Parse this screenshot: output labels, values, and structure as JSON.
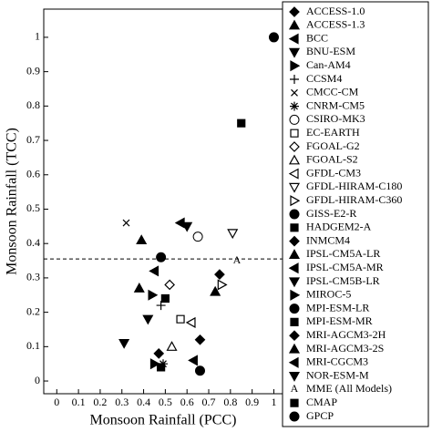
{
  "chart_data": {
    "type": "scatter",
    "x_label": "Monsoon Rainfall (PCC)",
    "y_label": "Monsoon Rainfall (TCC)",
    "xlim": [
      -0.06,
      1.04
    ],
    "ylim": [
      -0.037,
      1.082
    ],
    "xticks": [
      0,
      0.1,
      0.2,
      0.3,
      0.4,
      0.5,
      0.6,
      0.7,
      0.8,
      0.9,
      1
    ],
    "yticks": [
      0,
      0.1,
      0.2,
      0.3,
      0.4,
      0.5,
      0.6,
      0.7,
      0.8,
      0.9,
      1
    ],
    "reference_line": 0.355,
    "color": "#000000",
    "series": [
      {
        "name": "ACCESS-1.0",
        "marker": "diamond",
        "filled": true,
        "x": [
          0.47
        ],
        "values": [
          0.08
        ]
      },
      {
        "name": "ACCESS-1.3",
        "marker": "triangle-up",
        "filled": true,
        "x": [
          0.39
        ],
        "values": [
          0.41
        ]
      },
      {
        "name": "BCC",
        "marker": "triangle-left",
        "filled": true,
        "x": [
          0.45
        ],
        "values": [
          0.32
        ]
      },
      {
        "name": "BNU-ESM",
        "marker": "triangle-down",
        "filled": true,
        "x": [
          0.6
        ],
        "values": [
          0.45
        ]
      },
      {
        "name": "Can-AM4",
        "marker": "triangle-right",
        "filled": true,
        "x": [
          0.44
        ],
        "values": [
          0.25
        ]
      },
      {
        "name": "CCSM4",
        "marker": "plus",
        "filled": false,
        "x": [
          0.48
        ],
        "values": [
          0.22
        ]
      },
      {
        "name": "CMCC-CM",
        "marker": "cross",
        "filled": false,
        "x": [
          0.32
        ],
        "values": [
          0.46
        ]
      },
      {
        "name": "CNRM-CM5",
        "marker": "asterisk",
        "filled": false,
        "x": [
          0.49
        ],
        "values": [
          0.05
        ]
      },
      {
        "name": "CSIRO-MK3",
        "marker": "circle",
        "filled": false,
        "x": [
          0.65
        ],
        "values": [
          0.42
        ]
      },
      {
        "name": "EC-EARTH",
        "marker": "square",
        "filled": false,
        "x": [
          0.57
        ],
        "values": [
          0.18
        ]
      },
      {
        "name": "FGOAL-G2",
        "marker": "diamond",
        "filled": false,
        "x": [
          0.52
        ],
        "values": [
          0.28
        ]
      },
      {
        "name": "FGOAL-S2",
        "marker": "triangle-up",
        "filled": false,
        "x": [
          0.53
        ],
        "values": [
          0.1
        ]
      },
      {
        "name": "GFDL-CM3",
        "marker": "triangle-left",
        "filled": false,
        "x": [
          0.62
        ],
        "values": [
          0.17
        ]
      },
      {
        "name": "GFDL-HIRAM-C180",
        "marker": "triangle-down",
        "filled": false,
        "x": [
          0.81
        ],
        "values": [
          0.43
        ]
      },
      {
        "name": "GFDL-HIRAM-C360",
        "marker": "triangle-right",
        "filled": false,
        "x": [
          0.76
        ],
        "values": [
          0.28
        ]
      },
      {
        "name": "GISS-E2-R",
        "marker": "circle",
        "filled": true,
        "x": [
          0.48
        ],
        "values": [
          0.36
        ]
      },
      {
        "name": "HADGEM2-A",
        "marker": "square",
        "filled": true,
        "x": [
          0.85
        ],
        "values": [
          0.75
        ]
      },
      {
        "name": "INMCM4",
        "marker": "diamond",
        "filled": true,
        "x": [
          0.75
        ],
        "values": [
          0.31
        ]
      },
      {
        "name": "IPSL-CM5A-LR",
        "marker": "triangle-up",
        "filled": true,
        "x": [
          0.73
        ],
        "values": [
          0.26
        ]
      },
      {
        "name": "IPSL-CM5A-MR",
        "marker": "triangle-left",
        "filled": true,
        "x": [
          0.57
        ],
        "values": [
          0.46
        ]
      },
      {
        "name": "IPSL-CM5B-LR",
        "marker": "triangle-down",
        "filled": true,
        "x": [
          0.42
        ],
        "values": [
          0.18
        ]
      },
      {
        "name": "MIROC-5",
        "marker": "triangle-right",
        "filled": true,
        "x": [
          0.45
        ],
        "values": [
          0.05
        ]
      },
      {
        "name": "MPI-ESM-LR",
        "marker": "circle",
        "filled": true,
        "x": [
          0.66
        ],
        "values": [
          0.03
        ]
      },
      {
        "name": "MPI-ESM-MR",
        "marker": "square",
        "filled": true,
        "x": [
          0.5
        ],
        "values": [
          0.24
        ]
      },
      {
        "name": "MRI-AGCM3-2H",
        "marker": "diamond",
        "filled": true,
        "x": [
          0.66
        ],
        "values": [
          0.12
        ]
      },
      {
        "name": "MRI-AGCM3-2S",
        "marker": "triangle-up",
        "filled": true,
        "x": [
          0.38
        ],
        "values": [
          0.27
        ]
      },
      {
        "name": "MRI-CGCM3",
        "marker": "triangle-left",
        "filled": true,
        "x": [
          0.63
        ],
        "values": [
          0.06
        ]
      },
      {
        "name": "NOR-ESM-M",
        "marker": "triangle-down",
        "filled": true,
        "x": [
          0.31
        ],
        "values": [
          0.11
        ]
      },
      {
        "name": "MME (All Models)",
        "marker": "A",
        "filled": false,
        "x": [
          0.83
        ],
        "values": [
          0.35
        ]
      },
      {
        "name": "CMAP",
        "marker": "square",
        "filled": true,
        "x": [
          0.48
        ],
        "values": [
          0.04
        ]
      },
      {
        "name": "GPCP",
        "marker": "circle",
        "filled": true,
        "x": [
          1
        ],
        "values": [
          1
        ]
      }
    ]
  }
}
